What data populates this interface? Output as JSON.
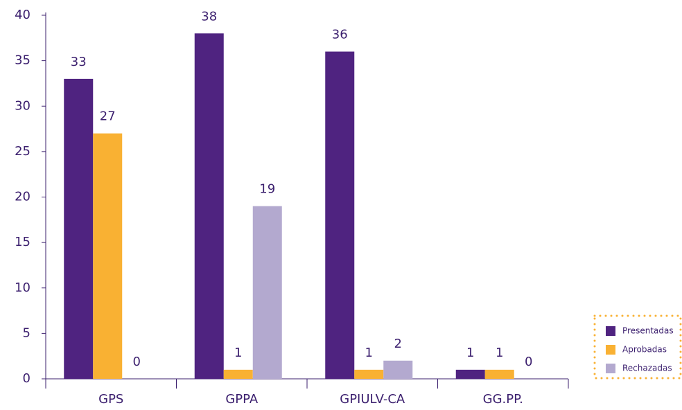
{
  "chart_data": {
    "type": "bar",
    "categories": [
      "GPS",
      "GPPA",
      "GPIULV-CA",
      "GG.PP."
    ],
    "series": [
      {
        "name": "Presentadas",
        "color": "#4f2380",
        "values": [
          33,
          38,
          36,
          1
        ]
      },
      {
        "name": "Aprobadas",
        "color": "#f9b133",
        "values": [
          27,
          1,
          1,
          1
        ]
      },
      {
        "name": "Rechazadas",
        "color": "#b3a9cf",
        "values": [
          0,
          19,
          2,
          0
        ]
      }
    ],
    "ylim": [
      0,
      40
    ],
    "yticks": [
      0,
      5,
      10,
      15,
      20,
      25,
      30,
      35,
      40
    ],
    "legend": "right"
  }
}
